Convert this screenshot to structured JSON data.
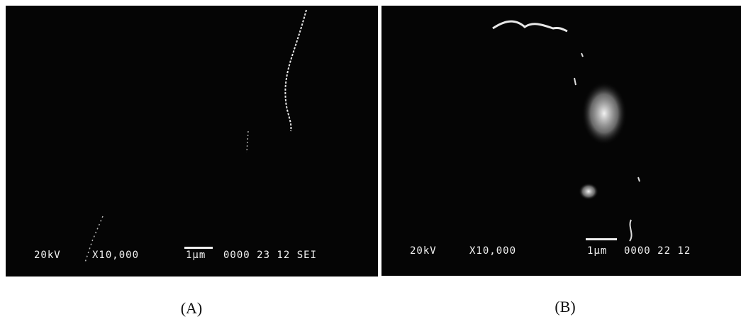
{
  "panels": [
    {
      "caption": "(A)",
      "info": {
        "voltage": "20kV",
        "magnification": "X10,000",
        "scale": "1μm",
        "code": "0000 23 12 SEI"
      }
    },
    {
      "caption": "(B)",
      "info": {
        "voltage": "20kV",
        "magnification": "X10,000",
        "scale": "1μm",
        "code": "0000 22 12"
      }
    }
  ]
}
